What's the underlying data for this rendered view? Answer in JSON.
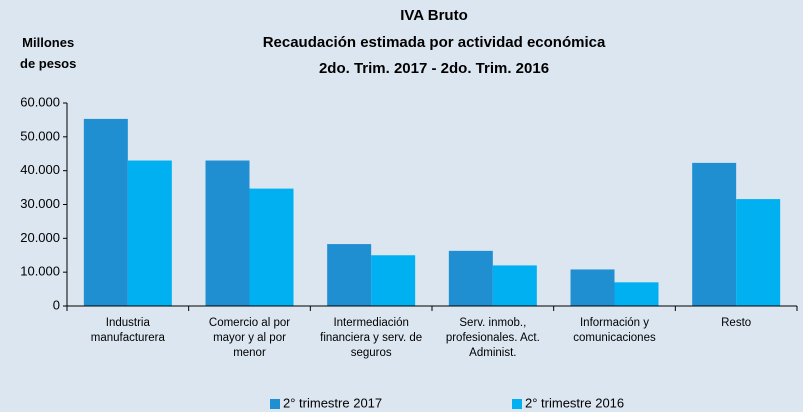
{
  "chart_data": {
    "type": "bar",
    "title": "IVA Bruto",
    "subtitle": [
      "Recaudación estimada por actividad económica",
      "2do. Trim. 2017 - 2do. Trim. 2016"
    ],
    "y_label": "Millones\nde pesos",
    "categories": [
      "Industria\nmanufacturera",
      "Comercio al por\nmayor y al por\nmenor",
      "Intermediación\nfinanciera y serv. de\nseguros",
      "Serv. inmob.,\nprofesionales. Act.\nAdminist.",
      "Información y\ncomunicaciones",
      "Resto"
    ],
    "series": [
      {
        "name": "2° trimestre 2017",
        "color": "#1f8fd2",
        "values": [
          55300,
          43000,
          18300,
          16300,
          10800,
          42300
        ]
      },
      {
        "name": "2° trimestre 2016",
        "color": "#00b0f0",
        "values": [
          43000,
          34700,
          15000,
          12000,
          7000,
          31600
        ]
      }
    ],
    "ylim": [
      0,
      60000
    ],
    "yticks": [
      0,
      {
        "value": 10000,
        "label": "10.000"
      },
      {
        "value": 20000,
        "label": "20.000"
      },
      {
        "value": 30000,
        "label": "30.000"
      },
      {
        "value": 40000,
        "label": "40.000"
      },
      {
        "value": 50000,
        "label": "50.000"
      },
      {
        "value": 60000,
        "label": "60.000"
      }
    ],
    "grid": false,
    "legend": "bottom"
  }
}
